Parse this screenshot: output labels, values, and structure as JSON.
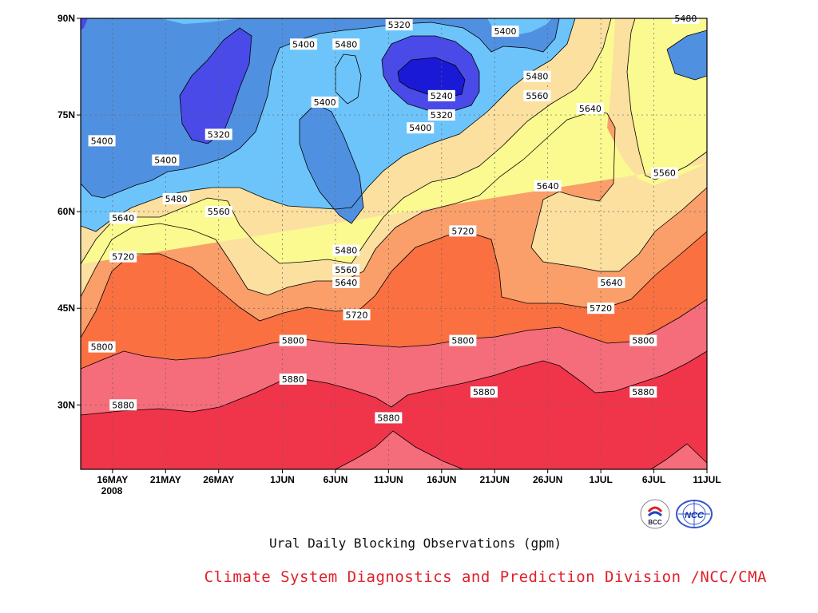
{
  "chart_data": {
    "type": "contour",
    "subtitle": "Ural Daily Blocking Observations (gpm)",
    "x_ticks": [
      "16MAY",
      "21MAY",
      "26MAY",
      "1JUN",
      "6JUN",
      "11JUN",
      "16JUN",
      "21JUN",
      "26JUN",
      "1JUL",
      "6JUL",
      "11JUL"
    ],
    "x_year_label": "2008",
    "y_ticks": [
      "30N",
      "45N",
      "60N",
      "75N",
      "90N"
    ],
    "ylim": [
      "20N",
      "90N"
    ],
    "xlim": [
      "13MAY",
      "11JUL"
    ],
    "grid": true,
    "contour_levels": [
      5240,
      5320,
      5400,
      5480,
      5560,
      5640,
      5720,
      5800,
      5880
    ],
    "fill_colors": {
      "lt5240": "#1a1ad6",
      "5240-5320": "#4a4ae8",
      "5320-5400": "#5090e0",
      "5400-5480": "#6cc4fa",
      "5480-5560": "#fafa90",
      "5560-5640": "#fce0a0",
      "5640-5720": "#fa9e6a",
      "5720-5800": "#fa7040",
      "5800-5880": "#f56c7a",
      "gt5880": "#f0344a"
    },
    "contour_labels": [
      {
        "text": "5400",
        "date": "15MAY",
        "lat": "71N"
      },
      {
        "text": "5320",
        "date": "26MAY",
        "lat": "72N"
      },
      {
        "text": "5400",
        "date": "21MAY",
        "lat": "68N"
      },
      {
        "text": "5400",
        "date": "3JUN",
        "lat": "86N"
      },
      {
        "text": "5480",
        "date": "7JUN",
        "lat": "86N"
      },
      {
        "text": "5320",
        "date": "12JUN",
        "lat": "89N"
      },
      {
        "text": "5400",
        "date": "22JUN",
        "lat": "88N"
      },
      {
        "text": "5400",
        "date": "5JUN",
        "lat": "77N"
      },
      {
        "text": "5240",
        "date": "16JUN",
        "lat": "78N"
      },
      {
        "text": "5320",
        "date": "16JUN",
        "lat": "75N"
      },
      {
        "text": "5400",
        "date": "14JUN",
        "lat": "73N"
      },
      {
        "text": "5480",
        "date": "25JUN",
        "lat": "81N"
      },
      {
        "text": "5560",
        "date": "25JUN",
        "lat": "78N"
      },
      {
        "text": "5640",
        "date": "30JUN",
        "lat": "76N"
      },
      {
        "text": "5480",
        "date": "9JUL",
        "lat": "90N"
      },
      {
        "text": "5480",
        "date": "22MAY",
        "lat": "62N"
      },
      {
        "text": "5640",
        "date": "17MAY",
        "lat": "59N"
      },
      {
        "text": "5560",
        "date": "26MAY",
        "lat": "60N"
      },
      {
        "text": "5640",
        "date": "26JUN",
        "lat": "64N"
      },
      {
        "text": "5560",
        "date": "7JUL",
        "lat": "66N"
      },
      {
        "text": "5720",
        "date": "17MAY",
        "lat": "53N"
      },
      {
        "text": "5720",
        "date": "18JUN",
        "lat": "57N"
      },
      {
        "text": "5480",
        "date": "7JUN",
        "lat": "54N"
      },
      {
        "text": "5560",
        "date": "7JUN",
        "lat": "51N"
      },
      {
        "text": "5640",
        "date": "7JUN",
        "lat": "49N"
      },
      {
        "text": "5720",
        "date": "8JUN",
        "lat": "44N"
      },
      {
        "text": "5640",
        "date": "2JUL",
        "lat": "49N"
      },
      {
        "text": "5720",
        "date": "1JUL",
        "lat": "45N"
      },
      {
        "text": "5800",
        "date": "15MAY",
        "lat": "39N"
      },
      {
        "text": "5800",
        "date": "2JUN",
        "lat": "40N"
      },
      {
        "text": "5800",
        "date": "18JUN",
        "lat": "40N"
      },
      {
        "text": "5800",
        "date": "5JUL",
        "lat": "40N"
      },
      {
        "text": "5880",
        "date": "17MAY",
        "lat": "30N"
      },
      {
        "text": "5880",
        "date": "2JUN",
        "lat": "34N"
      },
      {
        "text": "5880",
        "date": "20JUN",
        "lat": "32N"
      },
      {
        "text": "5880",
        "date": "5JUL",
        "lat": "32N"
      },
      {
        "text": "5880",
        "date": "11JUN",
        "lat": "28N"
      }
    ]
  },
  "footer": {
    "credit": "Climate System Diagnostics and Prediction Division /NCC/CMA",
    "logo_bcc_text": "BCC",
    "logo_ncc_text": "NCC"
  }
}
